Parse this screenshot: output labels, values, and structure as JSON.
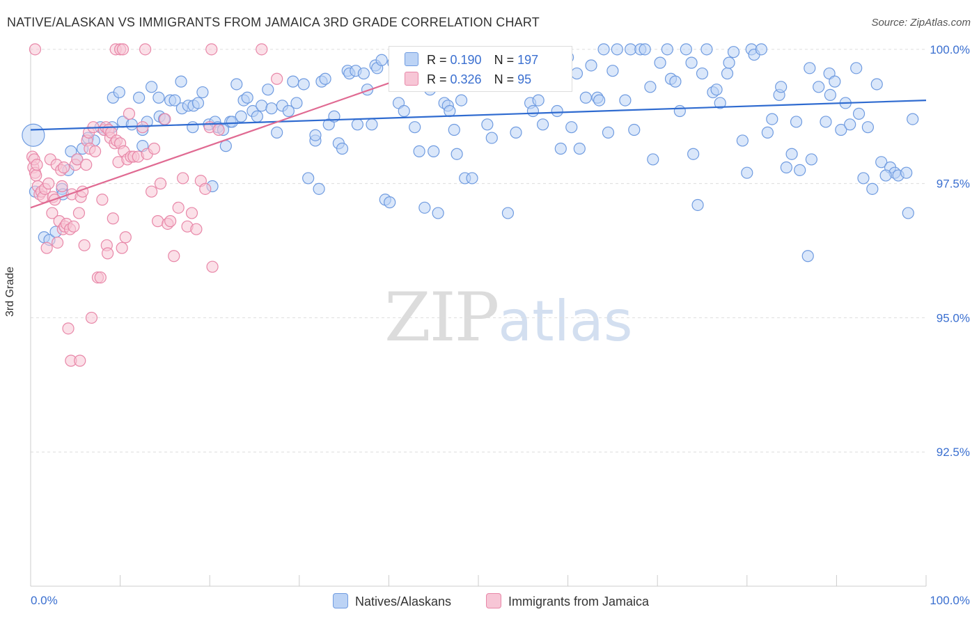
{
  "header": {
    "title": "NATIVE/ALASKAN VS IMMIGRANTS FROM JAMAICA 3RD GRADE CORRELATION CHART",
    "source": "Source: ZipAtlas.com"
  },
  "legend": {
    "row1": {
      "r_label": "R = ",
      "r_value": "0.190",
      "n_label": "N = ",
      "n_value": "197"
    },
    "row2": {
      "r_label": "R = ",
      "r_value": "0.326",
      "n_label": "N = ",
      "n_value": "95"
    }
  },
  "watermark": {
    "zip": "ZIP",
    "atlas": "atlas"
  },
  "colors": {
    "blue": "#6f9be0",
    "blue_fill": "#bcd3f5",
    "pink": "#e887a8",
    "pink_fill": "#f7c6d6",
    "blue_line": "#2f6bd0",
    "pink_line": "#e06a92",
    "tick_label": "#3a6fd0"
  },
  "chart_data": {
    "type": "scatter",
    "title": "NATIVE/ALASKAN VS IMMIGRANTS FROM JAMAICA 3RD GRADE CORRELATION CHART",
    "xlabel": "",
    "ylabel": "3rd Grade",
    "xlim": [
      0,
      100
    ],
    "ylim": [
      90.0,
      100.4
    ],
    "x_tick_labels": [
      "0.0%",
      "100.0%"
    ],
    "y_ticks": [
      92.5,
      95.0,
      97.5,
      100.0
    ],
    "y_tick_labels": [
      "92.5%",
      "95.0%",
      "97.5%",
      "100.0%"
    ],
    "grid": "horizontal dashed",
    "legend_position": "top-center and bottom",
    "series": [
      {
        "name": "Natives/Alaskans",
        "R": 0.19,
        "N": 197,
        "trend": {
          "x": [
            0,
            100
          ],
          "y": [
            98.5,
            99.05
          ]
        },
        "points": [
          [
            0.3,
            98.4
          ],
          [
            0.5,
            97.35
          ],
          [
            1.5,
            96.5
          ],
          [
            2.1,
            96.45
          ],
          [
            2.8,
            96.6
          ],
          [
            3.5,
            97.4
          ],
          [
            3.6,
            97.3
          ],
          [
            4.2,
            97.75
          ],
          [
            4.5,
            98.1
          ],
          [
            5.2,
            97.95
          ],
          [
            5.8,
            98.15
          ],
          [
            6.4,
            98.35
          ],
          [
            7.1,
            98.3
          ],
          [
            7.8,
            98.55
          ],
          [
            8.2,
            98.5
          ],
          [
            9.1,
            98.55
          ],
          [
            9.2,
            99.1
          ],
          [
            9.9,
            99.2
          ],
          [
            10.3,
            98.65
          ],
          [
            11.3,
            98.6
          ],
          [
            12.1,
            99.1
          ],
          [
            12.5,
            98.5
          ],
          [
            12.5,
            98.2
          ],
          [
            13.0,
            98.65
          ],
          [
            13.5,
            99.3
          ],
          [
            14.3,
            99.1
          ],
          [
            14.4,
            98.75
          ],
          [
            14.9,
            98.7
          ],
          [
            15.6,
            99.05
          ],
          [
            16.1,
            99.05
          ],
          [
            16.8,
            99.4
          ],
          [
            16.9,
            98.9
          ],
          [
            17.6,
            98.95
          ],
          [
            18.1,
            98.55
          ],
          [
            18.2,
            98.95
          ],
          [
            18.7,
            99.0
          ],
          [
            19.2,
            99.2
          ],
          [
            19.9,
            98.6
          ],
          [
            20.3,
            97.45
          ],
          [
            20.6,
            98.65
          ],
          [
            20.9,
            98.55
          ],
          [
            21.5,
            98.5
          ],
          [
            21.8,
            98.2
          ],
          [
            22.3,
            98.65
          ],
          [
            22.5,
            98.65
          ],
          [
            23.0,
            99.35
          ],
          [
            23.5,
            98.75
          ],
          [
            23.8,
            99.05
          ],
          [
            24.2,
            99.1
          ],
          [
            24.8,
            98.85
          ],
          [
            25.3,
            98.75
          ],
          [
            25.8,
            98.95
          ],
          [
            26.5,
            99.25
          ],
          [
            26.9,
            98.9
          ],
          [
            27.5,
            98.45
          ],
          [
            28.1,
            98.95
          ],
          [
            28.8,
            98.85
          ],
          [
            29.3,
            99.4
          ],
          [
            29.7,
            99.0
          ],
          [
            30.5,
            99.35
          ],
          [
            31.0,
            97.6
          ],
          [
            31.8,
            98.3
          ],
          [
            31.8,
            98.4
          ],
          [
            32.2,
            97.4
          ],
          [
            32.5,
            99.4
          ],
          [
            32.9,
            99.45
          ],
          [
            33.3,
            98.6
          ],
          [
            33.9,
            98.75
          ],
          [
            34.4,
            98.25
          ],
          [
            34.8,
            98.15
          ],
          [
            35.4,
            99.6
          ],
          [
            35.6,
            99.55
          ],
          [
            36.3,
            99.6
          ],
          [
            36.5,
            98.6
          ],
          [
            37.2,
            99.55
          ],
          [
            37.6,
            99.25
          ],
          [
            38.1,
            98.6
          ],
          [
            38.5,
            99.7
          ],
          [
            38.7,
            99.65
          ],
          [
            39.2,
            99.8
          ],
          [
            39.6,
            97.2
          ],
          [
            40.1,
            97.15
          ],
          [
            40.5,
            99.75
          ],
          [
            40.7,
            99.7
          ],
          [
            41.1,
            99.0
          ],
          [
            41.7,
            98.85
          ],
          [
            42.2,
            99.5
          ],
          [
            42.6,
            99.95
          ],
          [
            42.9,
            98.55
          ],
          [
            43.4,
            98.1
          ],
          [
            44.0,
            97.05
          ],
          [
            44.6,
            99.25
          ],
          [
            45.0,
            98.1
          ],
          [
            45.5,
            96.95
          ],
          [
            46.2,
            99.0
          ],
          [
            46.6,
            98.95
          ],
          [
            46.8,
            98.85
          ],
          [
            47.3,
            98.5
          ],
          [
            47.6,
            98.05
          ],
          [
            48.1,
            99.05
          ],
          [
            48.5,
            97.6
          ],
          [
            49.0,
            99.5
          ],
          [
            49.3,
            97.6
          ],
          [
            50.0,
            99.4
          ],
          [
            50.2,
            99.95
          ],
          [
            51.0,
            98.6
          ],
          [
            51.5,
            98.35
          ],
          [
            52.5,
            99.95
          ],
          [
            53.3,
            96.95
          ],
          [
            53.8,
            99.85
          ],
          [
            54.2,
            98.45
          ],
          [
            55.0,
            99.55
          ],
          [
            55.8,
            99.0
          ],
          [
            56.1,
            98.85
          ],
          [
            56.7,
            99.05
          ],
          [
            57.2,
            98.6
          ],
          [
            58.0,
            99.85
          ],
          [
            58.8,
            98.85
          ],
          [
            59.2,
            98.15
          ],
          [
            60.0,
            99.85
          ],
          [
            60.4,
            98.55
          ],
          [
            61.0,
            99.55
          ],
          [
            61.3,
            98.15
          ],
          [
            62.0,
            99.1
          ],
          [
            62.6,
            99.7
          ],
          [
            63.3,
            99.1
          ],
          [
            63.5,
            99.05
          ],
          [
            64.0,
            100.0
          ],
          [
            64.5,
            98.45
          ],
          [
            65.0,
            99.6
          ],
          [
            65.5,
            100.0
          ],
          [
            66.4,
            99.05
          ],
          [
            67.0,
            100.0
          ],
          [
            67.4,
            98.5
          ],
          [
            68.1,
            100.0
          ],
          [
            68.6,
            100.0
          ],
          [
            69.2,
            99.3
          ],
          [
            69.5,
            97.95
          ],
          [
            70.3,
            99.75
          ],
          [
            71.1,
            100.0
          ],
          [
            71.5,
            99.45
          ],
          [
            72.0,
            99.4
          ],
          [
            72.5,
            98.85
          ],
          [
            73.2,
            100.0
          ],
          [
            73.8,
            99.75
          ],
          [
            74.0,
            98.05
          ],
          [
            74.5,
            97.1
          ],
          [
            75.0,
            99.55
          ],
          [
            75.5,
            100.0
          ],
          [
            76.2,
            99.2
          ],
          [
            76.6,
            99.25
          ],
          [
            77.0,
            99.0
          ],
          [
            77.8,
            99.55
          ],
          [
            78.0,
            99.75
          ],
          [
            78.5,
            99.95
          ],
          [
            79.5,
            98.3
          ],
          [
            80.0,
            97.7
          ],
          [
            80.5,
            100.0
          ],
          [
            80.8,
            99.9
          ],
          [
            81.6,
            100.0
          ],
          [
            82.3,
            98.45
          ],
          [
            82.8,
            98.7
          ],
          [
            83.6,
            99.15
          ],
          [
            83.8,
            99.3
          ],
          [
            84.4,
            97.8
          ],
          [
            85.0,
            98.05
          ],
          [
            85.5,
            98.65
          ],
          [
            85.9,
            97.75
          ],
          [
            86.8,
            96.15
          ],
          [
            87.0,
            99.65
          ],
          [
            87.2,
            97.95
          ],
          [
            88.0,
            99.3
          ],
          [
            88.8,
            98.65
          ],
          [
            89.2,
            99.55
          ],
          [
            89.3,
            99.15
          ],
          [
            89.8,
            99.4
          ],
          [
            90.5,
            98.5
          ],
          [
            91.0,
            99.0
          ],
          [
            91.5,
            98.6
          ],
          [
            92.2,
            99.65
          ],
          [
            92.5,
            98.8
          ],
          [
            93.0,
            97.6
          ],
          [
            93.5,
            98.55
          ],
          [
            94.5,
            99.35
          ],
          [
            95.0,
            97.9
          ],
          [
            96.0,
            97.8
          ],
          [
            96.5,
            97.7
          ],
          [
            96.9,
            97.65
          ],
          [
            97.8,
            97.7
          ],
          [
            98.0,
            96.95
          ],
          [
            98.5,
            98.7
          ],
          [
            94.0,
            97.4
          ],
          [
            95.5,
            97.65
          ]
        ]
      },
      {
        "name": "Immigrants from Jamaica",
        "R": 0.326,
        "N": 95,
        "trend": {
          "x": [
            0,
            50
          ],
          "y": [
            97.05,
            99.95
          ]
        },
        "points": [
          [
            0.2,
            98.0
          ],
          [
            0.3,
            97.8
          ],
          [
            0.4,
            97.95
          ],
          [
            0.5,
            97.7
          ],
          [
            0.6,
            97.65
          ],
          [
            0.7,
            97.85
          ],
          [
            0.8,
            97.45
          ],
          [
            1.0,
            97.3
          ],
          [
            1.2,
            97.35
          ],
          [
            1.4,
            97.25
          ],
          [
            1.6,
            97.4
          ],
          [
            1.8,
            96.3
          ],
          [
            2.0,
            97.5
          ],
          [
            2.2,
            97.95
          ],
          [
            2.4,
            96.95
          ],
          [
            2.5,
            97.25
          ],
          [
            2.7,
            97.2
          ],
          [
            2.9,
            97.85
          ],
          [
            3.0,
            96.4
          ],
          [
            3.2,
            96.8
          ],
          [
            3.4,
            97.75
          ],
          [
            3.5,
            97.45
          ],
          [
            3.6,
            96.65
          ],
          [
            3.7,
            97.8
          ],
          [
            3.8,
            96.7
          ],
          [
            4.0,
            96.75
          ],
          [
            4.2,
            94.8
          ],
          [
            4.4,
            96.65
          ],
          [
            4.5,
            94.2
          ],
          [
            4.6,
            97.3
          ],
          [
            4.8,
            96.7
          ],
          [
            5.0,
            97.85
          ],
          [
            5.2,
            97.95
          ],
          [
            5.4,
            96.95
          ],
          [
            5.5,
            94.2
          ],
          [
            5.6,
            97.25
          ],
          [
            5.8,
            97.35
          ],
          [
            6.0,
            96.35
          ],
          [
            6.2,
            97.85
          ],
          [
            6.3,
            98.3
          ],
          [
            6.5,
            98.45
          ],
          [
            6.6,
            98.15
          ],
          [
            6.8,
            95.0
          ],
          [
            7.0,
            98.55
          ],
          [
            7.2,
            98.1
          ],
          [
            7.5,
            95.75
          ],
          [
            7.8,
            95.75
          ],
          [
            8.0,
            97.2
          ],
          [
            8.2,
            98.5
          ],
          [
            8.4,
            98.55
          ],
          [
            8.5,
            96.35
          ],
          [
            8.6,
            96.2
          ],
          [
            8.7,
            98.5
          ],
          [
            8.9,
            98.35
          ],
          [
            9.0,
            98.45
          ],
          [
            9.2,
            96.85
          ],
          [
            9.4,
            98.25
          ],
          [
            9.6,
            98.3
          ],
          [
            9.8,
            97.9
          ],
          [
            10.0,
            98.25
          ],
          [
            10.2,
            96.3
          ],
          [
            10.4,
            98.1
          ],
          [
            10.6,
            96.5
          ],
          [
            10.8,
            97.95
          ],
          [
            11.0,
            98.8
          ],
          [
            11.2,
            98.0
          ],
          [
            11.5,
            98.0
          ],
          [
            12.0,
            98.0
          ],
          [
            12.5,
            98.55
          ],
          [
            13.0,
            98.05
          ],
          [
            13.5,
            97.35
          ],
          [
            13.8,
            98.15
          ],
          [
            14.2,
            96.8
          ],
          [
            14.5,
            97.5
          ],
          [
            15.0,
            98.7
          ],
          [
            15.3,
            96.75
          ],
          [
            15.6,
            96.8
          ],
          [
            16.0,
            96.15
          ],
          [
            16.5,
            97.05
          ],
          [
            17.0,
            97.6
          ],
          [
            17.5,
            96.7
          ],
          [
            18.0,
            96.95
          ],
          [
            18.5,
            96.65
          ],
          [
            19.0,
            97.55
          ],
          [
            19.5,
            97.4
          ],
          [
            20.0,
            98.55
          ],
          [
            20.3,
            95.95
          ],
          [
            21.0,
            98.5
          ],
          [
            0.5,
            100.0
          ],
          [
            9.5,
            100.0
          ],
          [
            10.0,
            100.0
          ],
          [
            10.3,
            100.0
          ],
          [
            12.8,
            100.0
          ],
          [
            20.2,
            100.0
          ],
          [
            25.8,
            100.0
          ],
          [
            27.5,
            99.45
          ]
        ]
      }
    ]
  },
  "bottom_legend": {
    "item1": "Natives/Alaskans",
    "item2": "Immigrants from Jamaica"
  }
}
